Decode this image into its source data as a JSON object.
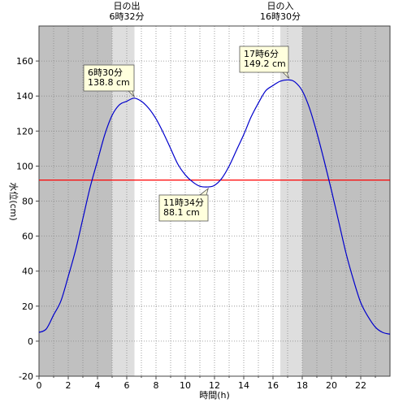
{
  "chart_data": {
    "type": "line",
    "xlabel": "時間(h)",
    "ylabel": "水位(cm)",
    "xlim": [
      0,
      24
    ],
    "ylim": [
      -20,
      180
    ],
    "x_ticks": [
      0,
      2,
      4,
      6,
      8,
      10,
      12,
      14,
      16,
      18,
      20,
      22
    ],
    "y_ticks": [
      -20,
      0,
      20,
      40,
      60,
      80,
      100,
      120,
      140,
      160
    ],
    "grid": true,
    "daylight": {
      "sunrise": 6.53,
      "sunset": 16.5,
      "civil_dawn": 5.0,
      "civil_dusk": 18.0
    },
    "sunrise_label": [
      "日の出",
      "6時32分"
    ],
    "sunset_label": [
      "日の入",
      "16時30分"
    ],
    "reference_line": 92,
    "series": [
      {
        "x": [
          0,
          0.5,
          1,
          1.5,
          2,
          2.5,
          3,
          3.5,
          4,
          4.5,
          5,
          5.5,
          6,
          6.5,
          7,
          7.5,
          8,
          8.5,
          9,
          9.5,
          10,
          10.5,
          11,
          11.57,
          12,
          12.5,
          13,
          13.5,
          14,
          14.5,
          15,
          15.5,
          16,
          16.5,
          17.1,
          17.5,
          18,
          18.5,
          19,
          19.5,
          20,
          20.5,
          21,
          21.5,
          22,
          22.5,
          23,
          23.5,
          24
        ],
        "values": [
          5,
          7,
          15,
          23,
          37,
          52,
          70,
          88,
          103,
          118,
          129,
          135,
          137,
          138.8,
          137,
          133,
          127,
          119,
          110,
          101,
          95,
          91,
          88.5,
          88.1,
          89,
          93,
          100,
          109,
          118,
          128,
          136,
          143,
          146,
          148.5,
          149.2,
          148,
          143,
          133,
          119,
          103,
          86,
          68,
          50,
          35,
          22,
          14,
          8,
          5,
          4
        ]
      }
    ],
    "annotations": [
      {
        "x": 6.5,
        "y": 138.8,
        "lines": [
          "6時30分",
          "138.8 cm"
        ]
      },
      {
        "x": 11.57,
        "y": 88.1,
        "lines": [
          "11時34分",
          "88.1 cm"
        ]
      },
      {
        "x": 17.1,
        "y": 149.2,
        "lines": [
          "17時6分",
          "149.2 cm"
        ]
      }
    ]
  }
}
